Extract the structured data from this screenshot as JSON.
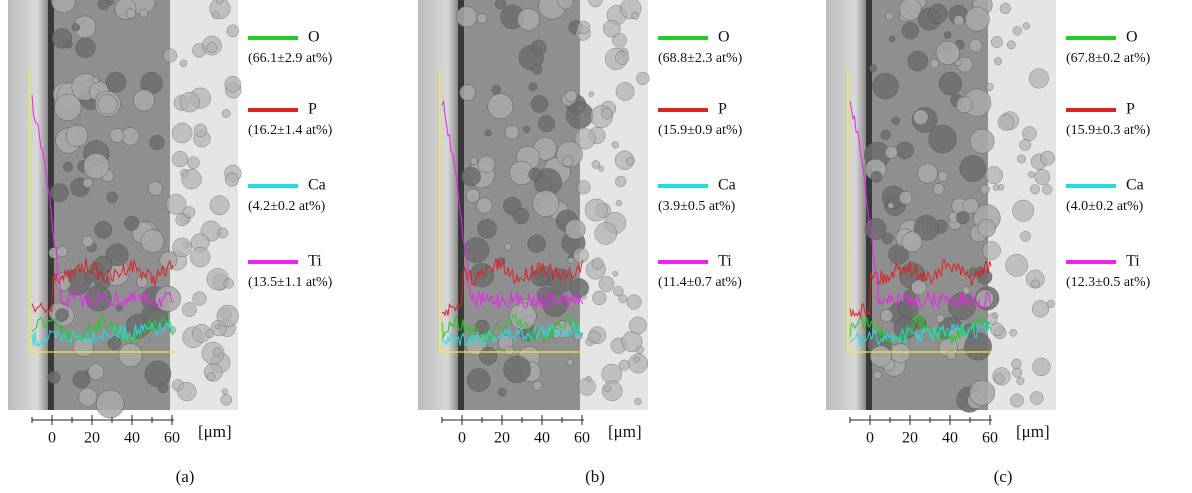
{
  "panels": [
    {
      "caption": "(a)",
      "axis": {
        "ticks": [
          0,
          20,
          40,
          60
        ],
        "unit": "[μm]"
      },
      "legend": [
        {
          "element": "O",
          "value": "(66.1±2.9 at%)",
          "color": "#22cc22"
        },
        {
          "element": "P",
          "value": "(16.2±1.4 at%)",
          "color": "#dd2222"
        },
        {
          "element": "Ca",
          "value": "(4.2±0.2 at%)",
          "color": "#22dddd"
        },
        {
          "element": "Ti",
          "value": "(13.5±1.1 at%)",
          "color": "#ee22ee"
        }
      ]
    },
    {
      "caption": "(b)",
      "axis": {
        "ticks": [
          0,
          20,
          40,
          60
        ],
        "unit": "[μm]"
      },
      "legend": [
        {
          "element": "O",
          "value": "(68.8±2.3 at%)",
          "color": "#22cc22"
        },
        {
          "element": "P",
          "value": "(15.9±0.9 at%)",
          "color": "#dd2222"
        },
        {
          "element": "Ca",
          "value": "(3.9±0.5 at%)",
          "color": "#22dddd"
        },
        {
          "element": "Ti",
          "value": "(11.4±0.7 at%)",
          "color": "#ee22ee"
        }
      ]
    },
    {
      "caption": "(c)",
      "axis": {
        "ticks": [
          0,
          20,
          40,
          60
        ],
        "unit": "[μm]"
      },
      "legend": [
        {
          "element": "O",
          "value": "(67.8±0.2 at%)",
          "color": "#22cc22"
        },
        {
          "element": "P",
          "value": "(15.9±0.3 at%)",
          "color": "#dd2222"
        },
        {
          "element": "Ca",
          "value": "(4.0±0.2 at%)",
          "color": "#22dddd"
        },
        {
          "element": "Ti",
          "value": "(12.3±0.5 at%)",
          "color": "#ee22ee"
        }
      ]
    }
  ]
}
